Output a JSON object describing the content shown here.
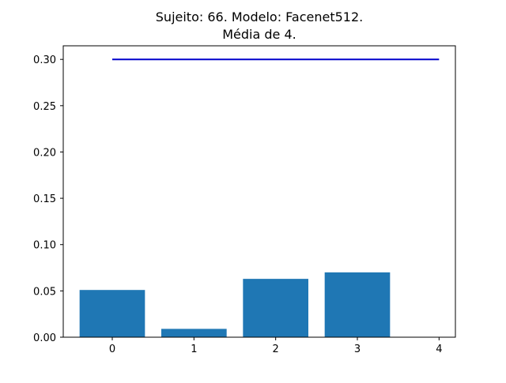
{
  "chart_data": {
    "type": "bar",
    "title_line1": "Sujeito: 66. Modelo: Facenet512.",
    "title_line2": "Média de 4.",
    "xlabel": "",
    "ylabel": "",
    "categories": [
      "0",
      "1",
      "2",
      "3"
    ],
    "values": [
      0.051,
      0.009,
      0.063,
      0.07
    ],
    "bar_color": "#1f77b4",
    "reference_line": {
      "x": [
        0,
        4
      ],
      "y": 0.3,
      "color": "#0000cc"
    },
    "xlim": [
      -0.6,
      4.2
    ],
    "ylim": [
      0,
      0.3
    ],
    "xticks": [
      "0",
      "1",
      "2",
      "3",
      "4"
    ],
    "yticks": [
      "0.00",
      "0.05",
      "0.10",
      "0.15",
      "0.20",
      "0.25",
      "0.30"
    ],
    "grid": false,
    "legend": "none"
  }
}
